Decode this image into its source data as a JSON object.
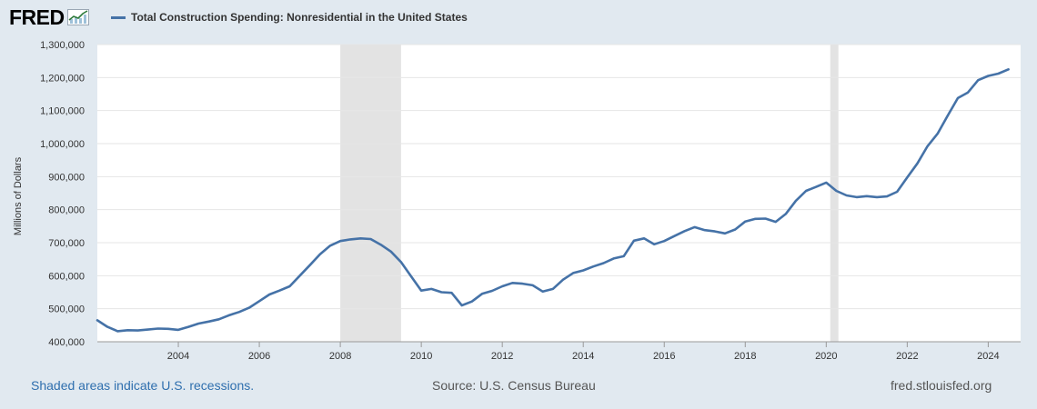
{
  "header": {
    "logo_text": "FRED",
    "series_title": "Total Construction Spending: Nonresidential in the United States"
  },
  "footer": {
    "recession_note": "Shaded areas indicate U.S. recessions.",
    "source": "Source: U.S. Census Bureau",
    "site": "fred.stlouisfed.org"
  },
  "colors": {
    "line": "#4572a7",
    "background": "#e1e9f0",
    "plot_background": "#ffffff",
    "recession": "#e3e3e3"
  },
  "chart_data": {
    "type": "line",
    "title": "Total Construction Spending: Nonresidential in the United States",
    "ylabel": "Millions of Dollars",
    "xlabel": "",
    "xlim": [
      2002.0,
      2024.8
    ],
    "ylim": [
      400000,
      1300000
    ],
    "y_ticks": [
      "400,000",
      "500,000",
      "600,000",
      "700,000",
      "800,000",
      "900,000",
      "1,000,000",
      "1,100,000",
      "1,200,000",
      "1,300,000"
    ],
    "y_tick_values": [
      400000,
      500000,
      600000,
      700000,
      800000,
      900000,
      1000000,
      1100000,
      1200000,
      1300000
    ],
    "x_ticks": [
      "2004",
      "2006",
      "2008",
      "2010",
      "2012",
      "2014",
      "2016",
      "2018",
      "2020",
      "2022",
      "2024"
    ],
    "x_tick_values": [
      2004,
      2006,
      2008,
      2010,
      2012,
      2014,
      2016,
      2018,
      2020,
      2022,
      2024
    ],
    "grid": true,
    "recessions": [
      [
        2008.0,
        2009.5
      ],
      [
        2020.1,
        2020.3
      ]
    ],
    "series": [
      {
        "name": "Total Construction Spending: Nonresidential in the United States",
        "x": [
          2002.0,
          2002.25,
          2002.5,
          2002.75,
          2003.0,
          2003.25,
          2003.5,
          2003.75,
          2004.0,
          2004.25,
          2004.5,
          2004.75,
          2005.0,
          2005.25,
          2005.5,
          2005.75,
          2006.0,
          2006.25,
          2006.5,
          2006.75,
          2007.0,
          2007.25,
          2007.5,
          2007.75,
          2008.0,
          2008.25,
          2008.5,
          2008.75,
          2009.0,
          2009.25,
          2009.5,
          2009.75,
          2010.0,
          2010.25,
          2010.5,
          2010.75,
          2011.0,
          2011.25,
          2011.5,
          2011.75,
          2012.0,
          2012.25,
          2012.5,
          2012.75,
          2013.0,
          2013.25,
          2013.5,
          2013.75,
          2014.0,
          2014.25,
          2014.5,
          2014.75,
          2015.0,
          2015.25,
          2015.5,
          2015.75,
          2016.0,
          2016.25,
          2016.5,
          2016.75,
          2017.0,
          2017.25,
          2017.5,
          2017.75,
          2018.0,
          2018.25,
          2018.5,
          2018.75,
          2019.0,
          2019.25,
          2019.5,
          2019.75,
          2020.0,
          2020.25,
          2020.5,
          2020.75,
          2021.0,
          2021.25,
          2021.5,
          2021.75,
          2022.0,
          2022.25,
          2022.5,
          2022.75,
          2023.0,
          2023.25,
          2023.5,
          2023.75,
          2024.0,
          2024.25,
          2024.5
        ],
        "values": [
          465000,
          445000,
          432000,
          435000,
          434000,
          437000,
          440000,
          439000,
          436000,
          445000,
          455000,
          461000,
          468000,
          480000,
          490000,
          503000,
          523000,
          543000,
          555000,
          568000,
          600000,
          632000,
          665000,
          691000,
          705000,
          710000,
          713000,
          711000,
          694000,
          673000,
          641000,
          598000,
          555000,
          560000,
          550000,
          548000,
          510000,
          522000,
          545000,
          554000,
          568000,
          578000,
          576000,
          571000,
          552000,
          560000,
          588000,
          608000,
          616000,
          628000,
          638000,
          652000,
          659000,
          706000,
          713000,
          695000,
          705000,
          720000,
          735000,
          747000,
          738000,
          734000,
          728000,
          740000,
          764000,
          772000,
          773000,
          763000,
          787000,
          827000,
          857000,
          869000,
          882000,
          857000,
          843000,
          838000,
          841000,
          838000,
          840000,
          854000,
          898000,
          940000,
          992000,
          1030000,
          1085000,
          1138000,
          1155000,
          1192000,
          1205000,
          1212000,
          1225000
        ]
      }
    ]
  }
}
